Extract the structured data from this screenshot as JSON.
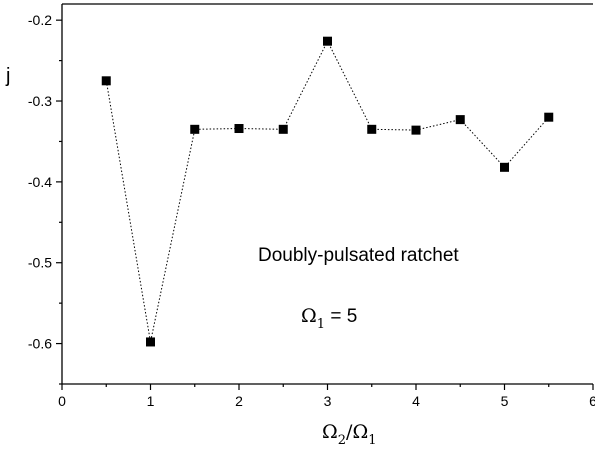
{
  "chart_data": {
    "type": "scatter",
    "connected": true,
    "line_style": "dotted",
    "marker": "filled-square",
    "x": [
      0.5,
      1.0,
      1.5,
      2.0,
      2.5,
      3.0,
      3.5,
      4.0,
      4.5,
      5.0,
      5.5
    ],
    "y": [
      -0.275,
      -0.598,
      -0.335,
      -0.334,
      -0.335,
      -0.226,
      -0.335,
      -0.336,
      -0.323,
      -0.382,
      -0.32
    ],
    "xlim": [
      0,
      6
    ],
    "ylim": [
      -0.65,
      -0.18
    ],
    "x_ticks": [
      "0",
      "1",
      "2",
      "3",
      "4",
      "5",
      "6"
    ],
    "y_ticks": [
      "-0.2",
      "-0.3",
      "-0.4",
      "-0.5",
      "-0.6"
    ],
    "x_tick_values": [
      0,
      1,
      2,
      3,
      4,
      5,
      6
    ],
    "y_tick_values": [
      -0.2,
      -0.3,
      -0.4,
      -0.5,
      -0.6
    ],
    "xlabel": {
      "omega": "Ω",
      "sub_a": "2",
      "slash": "/",
      "sub_b": "1"
    },
    "ylabel": "j",
    "annotations": {
      "title": "Doubly-pulsated ratchet",
      "param_symbol": "Ω",
      "param_sub": "1",
      "param_value": " = 5"
    },
    "grid": false,
    "colors": {
      "axis": "#000000",
      "marker": "#000000",
      "line": "#000000"
    }
  }
}
